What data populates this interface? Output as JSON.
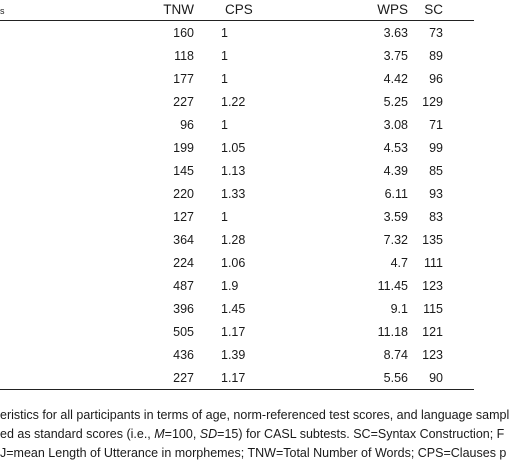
{
  "table": {
    "headers": {
      "row_label": "s",
      "tnw": "TNW",
      "cps": "CPS",
      "wps": "WPS",
      "sc": "SC"
    },
    "rows": [
      {
        "tnw": "160",
        "cps": "1",
        "wps": "3.63",
        "sc": "73"
      },
      {
        "tnw": "118",
        "cps": "1",
        "wps": "3.75",
        "sc": "89"
      },
      {
        "tnw": "177",
        "cps": "1",
        "wps": "4.42",
        "sc": "96"
      },
      {
        "tnw": "227",
        "cps": "1.22",
        "wps": "5.25",
        "sc": "129"
      },
      {
        "tnw": "96",
        "cps": "1",
        "wps": "3.08",
        "sc": "71"
      },
      {
        "tnw": "199",
        "cps": "1.05",
        "wps": "4.53",
        "sc": "99"
      },
      {
        "tnw": "145",
        "cps": "1.13",
        "wps": "4.39",
        "sc": "85"
      },
      {
        "tnw": "220",
        "cps": "1.33",
        "wps": "6.11",
        "sc": "93"
      },
      {
        "tnw": "127",
        "cps": "1",
        "wps": "3.59",
        "sc": "83"
      },
      {
        "tnw": "364",
        "cps": "1.28",
        "wps": "7.32",
        "sc": "135"
      },
      {
        "tnw": "224",
        "cps": "1.06",
        "wps": "4.7",
        "sc": "111"
      },
      {
        "tnw": "487",
        "cps": "1.9",
        "wps": "11.45",
        "sc": "123"
      },
      {
        "tnw": "396",
        "cps": "1.45",
        "wps": "9.1",
        "sc": "115"
      },
      {
        "tnw": "505",
        "cps": "1.17",
        "wps": "11.18",
        "sc": "121"
      },
      {
        "tnw": "436",
        "cps": "1.39",
        "wps": "8.74",
        "sc": "123"
      },
      {
        "tnw": "227",
        "cps": "1.17",
        "wps": "5.56",
        "sc": "90"
      }
    ]
  },
  "caption": {
    "line1": "eristics for all participants in terms of age, norm-referenced test scores, and language sampl",
    "line2_a": "ed as standard scores (i.e., ",
    "line2_m": "M",
    "line2_b": "=100, ",
    "line2_sd": "SD",
    "line2_c": "=15) for CASL subtests. SC=Syntax Construction; F",
    "line3": "J=mean Length of Utterance in morphemes; TNW=Total Number of Words; CPS=Clauses p"
  }
}
